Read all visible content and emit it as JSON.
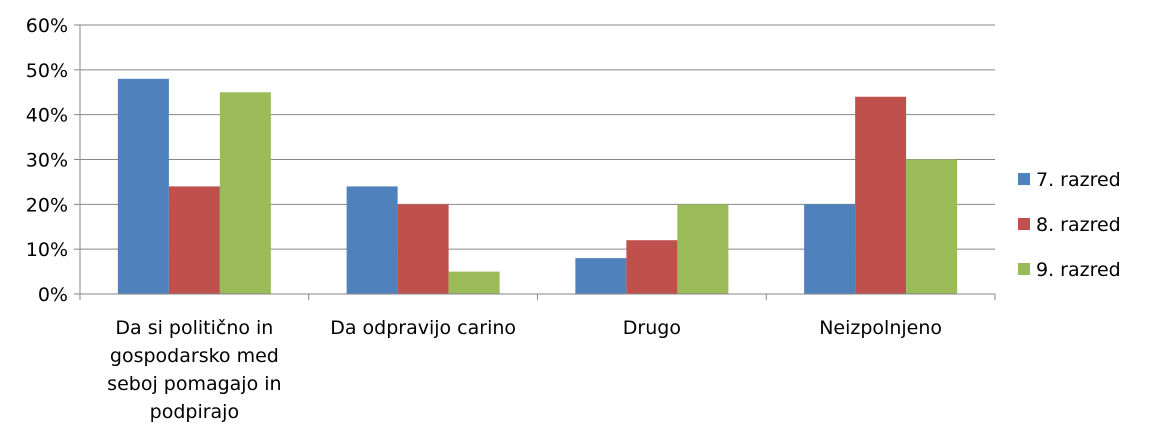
{
  "chart_data": {
    "type": "bar",
    "categories": [
      [
        "Da si politično in",
        "gospodarsko med",
        "seboj pomagajo in",
        "podpirajo"
      ],
      [
        "Da odpravijo carino"
      ],
      [
        "Drugo"
      ],
      [
        "Neizpolnjeno"
      ]
    ],
    "series": [
      {
        "name": "7. razred",
        "color": "#4F81BD",
        "values": [
          48,
          24,
          8,
          20
        ]
      },
      {
        "name": "8. razred",
        "color": "#C0504D",
        "values": [
          24,
          20,
          12,
          44
        ]
      },
      {
        "name": "9. razred",
        "color": "#9BBB59",
        "values": [
          45,
          5,
          20,
          30
        ]
      }
    ],
    "ylim": [
      0,
      60
    ],
    "yticks": [
      0,
      10,
      20,
      30,
      40,
      50,
      60
    ],
    "ytick_labels": [
      "0%",
      "10%",
      "20%",
      "30%",
      "40%",
      "50%",
      "60%"
    ],
    "grid": true,
    "legend": "right"
  }
}
